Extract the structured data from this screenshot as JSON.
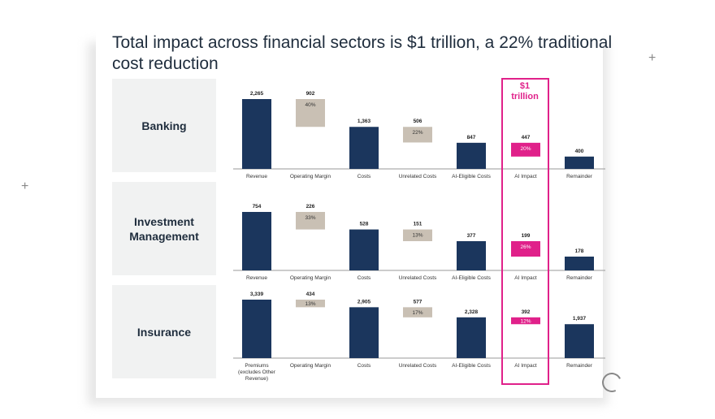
{
  "title": "Total impact across financial sectors is $1 trillion, a 22% traditional cost reduction",
  "highlight": {
    "line1": "$1",
    "line2": "trillion",
    "color": "#e0218a"
  },
  "colors": {
    "bar": "#1b365d",
    "pct_box": "#c9c0b4",
    "ai_box": "#e0218a",
    "sector_bg": "#f1f2f2"
  },
  "icons": [
    "plus-icon",
    "plus-icon",
    "spinner-icon"
  ],
  "chart_data": [
    {
      "type": "bar",
      "sector": "Banking",
      "categories": [
        "Revenue",
        "Operating Margin",
        "Costs",
        "Unrelated Costs",
        "AI-Eligible Costs",
        "AI Impact",
        "Remainder"
      ],
      "values": [
        2265,
        902,
        1363,
        506,
        847,
        447,
        400
      ],
      "value_labels": [
        "2,265",
        "902",
        "1,363",
        "506",
        "847",
        "447",
        "400"
      ],
      "percent_labels": [
        "",
        "40%",
        "",
        "22%",
        "",
        "20%",
        ""
      ]
    },
    {
      "type": "bar",
      "sector": "Investment Management",
      "categories": [
        "Revenue",
        "Operating Margin",
        "Costs",
        "Unrelated Costs",
        "AI-Eligible Costs",
        "AI Impact",
        "Remainder"
      ],
      "values": [
        754,
        226,
        528,
        151,
        377,
        199,
        178
      ],
      "value_labels": [
        "754",
        "226",
        "528",
        "151",
        "377",
        "199",
        "178"
      ],
      "percent_labels": [
        "",
        "33%",
        "",
        "13%",
        "",
        "26%",
        ""
      ]
    },
    {
      "type": "bar",
      "sector": "Insurance",
      "categories": [
        "Premiums (excludes Other Revenue)",
        "Operating Margin",
        "Costs",
        "Unrelated Costs",
        "AI-Eligible Costs",
        "AI Impact",
        "Remainder"
      ],
      "values": [
        3339,
        434,
        2905,
        577,
        2328,
        392,
        1937
      ],
      "value_labels": [
        "3,339",
        "434",
        "2,905",
        "577",
        "2,328",
        "392",
        "1,937"
      ],
      "percent_labels": [
        "",
        "13%",
        "",
        "17%",
        "",
        "12%",
        ""
      ]
    }
  ]
}
